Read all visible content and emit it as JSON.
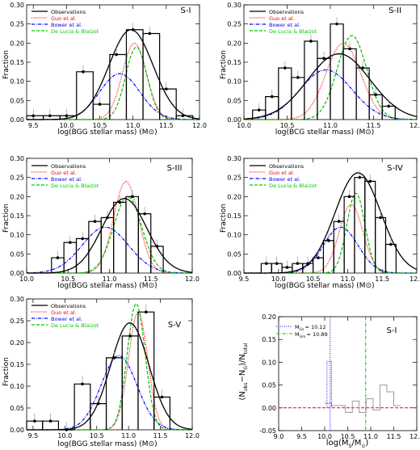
{
  "legend_colors": {
    "Observations": "#000000",
    "Guo et al.": "#ff0000",
    "Bower et al.": "#0000ff",
    "De Lucia & Blaizot": "#00c000"
  },
  "legend_labels": {
    "obs": "Observations",
    "guo": "Guo et al.",
    "bower": "Bower et al.",
    "delucia": "De Lucia & Blaizot"
  },
  "chart_data": [
    {
      "type": "histogram",
      "panel_label": "S-I",
      "ylabel": "Fraction",
      "xlabel": "log(BGG stellar mass) (M⊙)",
      "xlim": [
        9.4,
        12.0
      ],
      "ylim": [
        0,
        0.3
      ],
      "xticks": [
        9.5,
        10.0,
        10.5,
        11.0,
        11.5,
        12.0
      ],
      "yticks": [
        0.0,
        0.05,
        0.1,
        0.15,
        0.2,
        0.25,
        0.3
      ],
      "observations": {
        "edges": [
          9.4,
          9.65,
          9.9,
          10.15,
          10.4,
          10.65,
          10.9,
          11.15,
          11.4,
          11.65,
          11.9
        ],
        "values": [
          0.01,
          0.01,
          0.01,
          0.125,
          0.04,
          0.17,
          0.235,
          0.225,
          0.08,
          0.01
        ]
      },
      "points": {
        "x": [
          9.5,
          9.75,
          10.0,
          10.25,
          10.5,
          10.75,
          11.0,
          11.25,
          11.5,
          11.75
        ],
        "y": [
          0.01,
          0.01,
          0.01,
          0.125,
          0.04,
          0.17,
          0.235,
          0.225,
          0.08,
          0.01
        ]
      },
      "gaussian": {
        "mean": 10.97,
        "sigma": 0.33,
        "peak": 0.235
      },
      "models": [
        {
          "name": "Guo et al.",
          "mean": 11.02,
          "sigma": 0.18,
          "peak": 0.2
        },
        {
          "name": "Bower et al.",
          "mean": 10.8,
          "sigma": 0.3,
          "peak": 0.12
        },
        {
          "name": "De Lucia & Blaizot",
          "mean": 11.05,
          "sigma": 0.16,
          "peak": 0.19
        }
      ]
    },
    {
      "type": "histogram",
      "panel_label": "S-II",
      "ylabel": "Fraction",
      "xlabel": "log(BCG stellar mass) (M⊙)",
      "xlim": [
        10.0,
        12.0
      ],
      "ylim": [
        0,
        0.3
      ],
      "xticks": [
        10.0,
        10.5,
        11.0,
        11.5,
        12.0
      ],
      "yticks": [
        0.0,
        0.05,
        0.1,
        0.15,
        0.2,
        0.25,
        0.3
      ],
      "observations": {
        "edges": [
          10.1,
          10.25,
          10.4,
          10.55,
          10.7,
          10.85,
          11.0,
          11.15,
          11.3,
          11.45,
          11.6,
          11.75
        ],
        "values": [
          0.025,
          0.06,
          0.135,
          0.11,
          0.205,
          0.16,
          0.25,
          0.185,
          0.135,
          0.065,
          0.035
        ]
      },
      "points": {
        "x": [
          10.175,
          10.325,
          10.475,
          10.625,
          10.775,
          10.925,
          11.075,
          11.225,
          11.375,
          11.525,
          11.675
        ],
        "y": [
          0.025,
          0.06,
          0.135,
          0.11,
          0.205,
          0.16,
          0.25,
          0.185,
          0.135,
          0.065,
          0.035
        ]
      },
      "gaussian": {
        "mean": 11.1,
        "sigma": 0.36,
        "peak": 0.172
      },
      "models": [
        {
          "name": "Guo et al.",
          "mean": 11.15,
          "sigma": 0.2,
          "peak": 0.2
        },
        {
          "name": "Bower et al.",
          "mean": 10.95,
          "sigma": 0.3,
          "peak": 0.13
        },
        {
          "name": "De Lucia & Blaizot",
          "mean": 11.25,
          "sigma": 0.17,
          "peak": 0.22
        }
      ]
    },
    {
      "type": "histogram",
      "panel_label": "S-III",
      "ylabel": "Fraction",
      "xlabel": "log(BGG stellar mass) (M⊙)",
      "xlim": [
        10.0,
        12.0
      ],
      "ylim": [
        0,
        0.3
      ],
      "xticks": [
        10.0,
        10.5,
        11.0,
        11.5,
        12.0
      ],
      "yticks": [
        0.0,
        0.05,
        0.1,
        0.15,
        0.2,
        0.25,
        0.3
      ],
      "observations": {
        "edges": [
          10.3,
          10.45,
          10.6,
          10.75,
          10.9,
          11.05,
          11.2,
          11.35,
          11.5,
          11.65
        ],
        "values": [
          0.04,
          0.08,
          0.09,
          0.135,
          0.145,
          0.185,
          0.2,
          0.155,
          0.07
        ]
      },
      "points": {
        "x": [
          10.375,
          10.525,
          10.675,
          10.825,
          10.975,
          11.125,
          11.275,
          11.425,
          11.575
        ],
        "y": [
          0.04,
          0.08,
          0.09,
          0.135,
          0.145,
          0.185,
          0.2,
          0.155,
          0.07
        ]
      },
      "gaussian": {
        "mean": 11.18,
        "sigma": 0.27,
        "peak": 0.195
      },
      "models": [
        {
          "name": "Guo et al.",
          "mean": 11.2,
          "sigma": 0.15,
          "peak": 0.24
        },
        {
          "name": "Bower et al.",
          "mean": 10.95,
          "sigma": 0.28,
          "peak": 0.12
        },
        {
          "name": "De Lucia & Blaizot",
          "mean": 11.22,
          "sigma": 0.17,
          "peak": 0.2
        }
      ]
    },
    {
      "type": "histogram",
      "panel_label": "S-IV",
      "ylabel": "Fraction",
      "xlabel": "log(BGG stellar mass) (M⊙)",
      "xlim": [
        9.5,
        12.0
      ],
      "ylim": [
        0,
        0.3
      ],
      "xticks": [
        9.5,
        10.0,
        10.5,
        11.0,
        11.5,
        12.0
      ],
      "yticks": [
        0.0,
        0.05,
        0.1,
        0.15,
        0.2,
        0.25,
        0.3
      ],
      "observations": {
        "edges": [
          9.75,
          9.9,
          10.05,
          10.2,
          10.35,
          10.5,
          10.65,
          10.8,
          10.95,
          11.1,
          11.25,
          11.4,
          11.55,
          11.7
        ],
        "values": [
          0.025,
          0.025,
          0.015,
          0.025,
          0.025,
          0.04,
          0.085,
          0.135,
          0.2,
          0.25,
          0.24,
          0.145,
          0.075
        ]
      },
      "points": {
        "x": [
          9.825,
          9.975,
          10.125,
          10.275,
          10.425,
          10.575,
          10.725,
          10.875,
          11.025,
          11.175,
          11.325,
          11.475,
          11.625
        ],
        "y": [
          0.025,
          0.025,
          0.015,
          0.025,
          0.025,
          0.04,
          0.085,
          0.135,
          0.2,
          0.25,
          0.24,
          0.145,
          0.075
        ]
      },
      "gaussian": {
        "mean": 11.15,
        "sigma": 0.33,
        "peak": 0.262
      },
      "models": [
        {
          "name": "Guo et al.",
          "mean": 11.05,
          "sigma": 0.17,
          "peak": 0.18
        },
        {
          "name": "Bower et al.",
          "mean": 10.9,
          "sigma": 0.25,
          "peak": 0.12
        },
        {
          "name": "De Lucia & Blaizot",
          "mean": 11.12,
          "sigma": 0.13,
          "peak": 0.21
        }
      ]
    },
    {
      "type": "histogram",
      "panel_label": "S-V",
      "ylabel": "Fraction",
      "xlabel": "log(BGG stellar mass) (M⊙)",
      "xlim": [
        9.4,
        12.0
      ],
      "ylim": [
        0,
        0.3
      ],
      "xticks": [
        9.5,
        10.0,
        10.5,
        11.0,
        11.5,
        12.0
      ],
      "yticks": [
        0.0,
        0.05,
        0.1,
        0.15,
        0.2,
        0.25,
        0.3
      ],
      "observations": {
        "edges": [
          9.4,
          9.65,
          9.9,
          10.15,
          10.4,
          10.65,
          10.9,
          11.15,
          11.4,
          11.65
        ],
        "values": [
          0.02,
          0.02,
          0.0,
          0.105,
          0.06,
          0.165,
          0.215,
          0.27,
          0.075
        ]
      },
      "points": {
        "x": [
          9.525,
          9.775,
          10.025,
          10.275,
          10.525,
          10.775,
          11.025,
          11.275,
          11.525
        ],
        "y": [
          0.02,
          0.02,
          0.0,
          0.105,
          0.06,
          0.165,
          0.215,
          0.27,
          0.075
        ]
      },
      "gaussian": {
        "mean": 11.02,
        "sigma": 0.3,
        "peak": 0.245
      },
      "models": [
        {
          "name": "Guo et al.",
          "mean": 11.15,
          "sigma": 0.15,
          "peak": 0.27
        },
        {
          "name": "Bower et al.",
          "mean": 10.85,
          "sigma": 0.28,
          "peak": 0.17
        },
        {
          "name": "De Lucia & Blaizot",
          "mean": 11.12,
          "sigma": 0.14,
          "peak": 0.29
        }
      ]
    },
    {
      "type": "histogram",
      "panel_label": "S-I",
      "ylabel": "(N_obs − N_G)/N_total",
      "xlabel": "log(M_S/M_⊙)",
      "ylabel_parts": {
        "open": "(N",
        "sub1": "obs",
        "minus": "−N",
        "sub2": "G",
        "close": ")/N",
        "sub3": "total"
      },
      "xlabel_parts": {
        "open": "log(M",
        "sub1": "S",
        "slash": "/M",
        "sub2": "⊙",
        "close": ")"
      },
      "xlim": [
        9.0,
        12.0
      ],
      "ylim": [
        -0.05,
        0.2
      ],
      "xticks": [
        9.0,
        9.5,
        10.0,
        10.5,
        11.0,
        11.5,
        12.0
      ],
      "yticks": [
        -0.05,
        0.0,
        0.05,
        0.1,
        0.15,
        0.2
      ],
      "residuals": {
        "edges": [
          10.0,
          10.15,
          10.3,
          10.45,
          10.6,
          10.75,
          10.9,
          11.05,
          11.2,
          11.35,
          11.5,
          11.65
        ],
        "values": [
          0.01,
          0.005,
          0.005,
          -0.01,
          0.015,
          -0.01,
          0.02,
          -0.005,
          0.05,
          0.035,
          0.005
        ]
      },
      "vlines": [
        {
          "label": "M",
          "sub": "Gs",
          "eq": "= 10.12",
          "x": 10.12,
          "color": "#0000ff"
        },
        {
          "label": "M",
          "sub": "Gm",
          "eq": "= 10.89",
          "x": 10.89,
          "color": "#00c000"
        }
      ],
      "zero_line_color": "#ff0000"
    }
  ]
}
